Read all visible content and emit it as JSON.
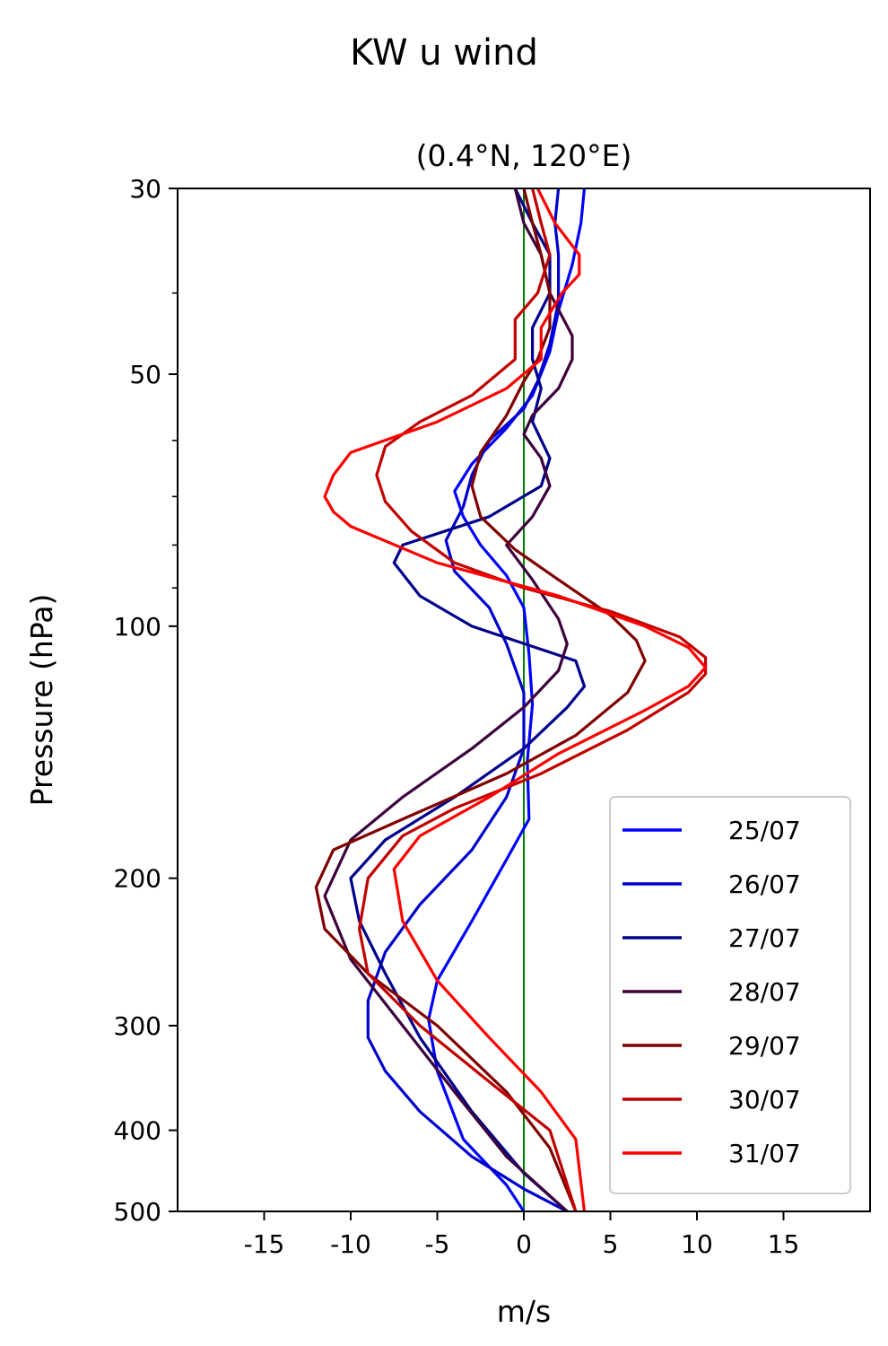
{
  "chart_data": {
    "type": "line",
    "suptitle": "KW u wind",
    "title": "(0.4°N, 120°E)",
    "xlabel": "m/s",
    "ylabel": "Pressure (hPa)",
    "xlim": [
      -20,
      20
    ],
    "ylim": [
      500,
      30
    ],
    "yscale": "log",
    "xticks": [
      -15,
      -10,
      -5,
      0,
      5,
      10,
      15
    ],
    "xtick_labels": [
      "-15",
      "-10",
      "-5",
      "0",
      "5",
      "10",
      "15"
    ],
    "yticks": [
      30,
      50,
      100,
      200,
      300,
      400,
      500
    ],
    "ytick_labels": [
      "30",
      "50",
      "100",
      "200",
      "300",
      "400",
      "500"
    ],
    "yminor_ticks": [
      40,
      60,
      70,
      80,
      90
    ],
    "reference_line": {
      "x": 0,
      "color": "#008000"
    },
    "legend_position": "lower-right",
    "grid": false,
    "series": [
      {
        "name": "25/07",
        "color": "#0000ff",
        "points": [
          [
            3.5,
            30
          ],
          [
            3.3,
            33
          ],
          [
            2.8,
            37
          ],
          [
            2.0,
            42
          ],
          [
            1.5,
            47
          ],
          [
            0.5,
            53
          ],
          [
            -1,
            58
          ],
          [
            -3,
            64
          ],
          [
            -4,
            69
          ],
          [
            -3.5,
            74
          ],
          [
            -2.5,
            80
          ],
          [
            -1,
            87
          ],
          [
            0,
            95
          ],
          [
            0.3,
            108
          ],
          [
            0.5,
            124
          ],
          [
            0.2,
            145
          ],
          [
            0.3,
            170
          ],
          [
            -1,
            190
          ],
          [
            -3,
            225
          ],
          [
            -5,
            265
          ],
          [
            -5.5,
            295
          ],
          [
            -5,
            340
          ],
          [
            -3.5,
            410
          ],
          [
            -1,
            465
          ],
          [
            0,
            500
          ]
        ]
      },
      {
        "name": "26/07",
        "color": "#0000cd",
        "points": [
          [
            2.0,
            30
          ],
          [
            1.8,
            33
          ],
          [
            2.0,
            36
          ],
          [
            2.0,
            41
          ],
          [
            1.5,
            46
          ],
          [
            0.8,
            51
          ],
          [
            0,
            55
          ],
          [
            -2,
            60
          ],
          [
            -3,
            66
          ],
          [
            -3.5,
            72
          ],
          [
            -4.5,
            79
          ],
          [
            -4,
            86
          ],
          [
            -2,
            95
          ],
          [
            -1,
            105
          ],
          [
            0,
            120
          ],
          [
            0,
            140
          ],
          [
            -1,
            160
          ],
          [
            -3,
            185
          ],
          [
            -6,
            215
          ],
          [
            -8,
            245
          ],
          [
            -9,
            280
          ],
          [
            -9,
            310
          ],
          [
            -8,
            340
          ],
          [
            -6,
            380
          ],
          [
            -3,
            430
          ],
          [
            0,
            470
          ],
          [
            2.5,
            500
          ]
        ]
      },
      {
        "name": "27/07",
        "color": "#00008b",
        "points": [
          [
            -0.5,
            30
          ],
          [
            0.5,
            33
          ],
          [
            1.5,
            36
          ],
          [
            1.5,
            40
          ],
          [
            0.5,
            44
          ],
          [
            0.5,
            48
          ],
          [
            1.0,
            52
          ],
          [
            0.5,
            57
          ],
          [
            1.5,
            63
          ],
          [
            1.0,
            68
          ],
          [
            -2,
            74
          ],
          [
            -7,
            80
          ],
          [
            -7.5,
            84
          ],
          [
            -6,
            92
          ],
          [
            -3,
            100
          ],
          [
            3,
            110
          ],
          [
            3.5,
            118
          ],
          [
            2.5,
            125
          ],
          [
            0,
            140
          ],
          [
            -4,
            160
          ],
          [
            -8,
            180
          ],
          [
            -10,
            200
          ],
          [
            -9.5,
            225
          ],
          [
            -8,
            260
          ],
          [
            -6,
            310
          ],
          [
            -3,
            380
          ],
          [
            0,
            450
          ],
          [
            2.5,
            500
          ]
        ]
      },
      {
        "name": "28/07",
        "color": "#3c003c",
        "points": [
          [
            -0.5,
            30
          ],
          [
            0,
            33
          ],
          [
            1.0,
            36
          ],
          [
            1.5,
            40
          ],
          [
            2.8,
            45
          ],
          [
            2.8,
            48
          ],
          [
            2.0,
            52
          ],
          [
            0.5,
            56
          ],
          [
            0,
            59
          ],
          [
            1.0,
            63
          ],
          [
            1.5,
            68
          ],
          [
            0.5,
            74
          ],
          [
            -1,
            80
          ],
          [
            0.5,
            88
          ],
          [
            2,
            98
          ],
          [
            2.5,
            105
          ],
          [
            2.0,
            113
          ],
          [
            0,
            125
          ],
          [
            -3,
            140
          ],
          [
            -7,
            160
          ],
          [
            -10,
            180
          ],
          [
            -11.5,
            210
          ],
          [
            -10,
            250
          ],
          [
            -7,
            300
          ],
          [
            -4,
            360
          ],
          [
            -1,
            430
          ],
          [
            2.5,
            500
          ]
        ]
      },
      {
        "name": "29/07",
        "color": "#800000",
        "points": [
          [
            0,
            30
          ],
          [
            0.5,
            33
          ],
          [
            1.0,
            36
          ],
          [
            1.5,
            40
          ],
          [
            1.5,
            44
          ],
          [
            0.8,
            48
          ],
          [
            0,
            51
          ],
          [
            -1,
            56
          ],
          [
            -2.5,
            62
          ],
          [
            -3,
            68
          ],
          [
            -2.5,
            74
          ],
          [
            -0.5,
            81
          ],
          [
            2,
            88
          ],
          [
            5,
            97
          ],
          [
            6.5,
            104
          ],
          [
            7,
            110
          ],
          [
            6,
            120
          ],
          [
            3,
            135
          ],
          [
            -1,
            150
          ],
          [
            -7,
            170
          ],
          [
            -11,
            185
          ],
          [
            -12,
            205
          ],
          [
            -11.5,
            230
          ],
          [
            -9,
            260
          ],
          [
            -5,
            300
          ],
          [
            -1,
            360
          ],
          [
            1.5,
            420
          ],
          [
            3,
            500
          ]
        ]
      },
      {
        "name": "30/07",
        "color": "#c00000",
        "points": [
          [
            0.5,
            30
          ],
          [
            1.0,
            33
          ],
          [
            1.5,
            36
          ],
          [
            0.8,
            40
          ],
          [
            -0.5,
            43
          ],
          [
            -0.5,
            45
          ],
          [
            -0.5,
            48
          ],
          [
            -3,
            53
          ],
          [
            -6,
            57
          ],
          [
            -8,
            61
          ],
          [
            -8.5,
            66
          ],
          [
            -8,
            71
          ],
          [
            -6.5,
            77
          ],
          [
            -4,
            84
          ],
          [
            0,
            90
          ],
          [
            5,
            96
          ],
          [
            9,
            103
          ],
          [
            10.5,
            109
          ],
          [
            10.5,
            114
          ],
          [
            9.5,
            120
          ],
          [
            6,
            133
          ],
          [
            1,
            150
          ],
          [
            -4,
            165
          ],
          [
            -7,
            178
          ],
          [
            -9,
            200
          ],
          [
            -9.5,
            230
          ],
          [
            -9,
            260
          ],
          [
            -6,
            300
          ],
          [
            -2,
            350
          ],
          [
            1.5,
            400
          ],
          [
            3,
            500
          ]
        ]
      },
      {
        "name": "31/07",
        "color": "#ff0000",
        "points": [
          [
            0.8,
            30
          ],
          [
            1.8,
            33
          ],
          [
            3.2,
            36
          ],
          [
            3.2,
            38
          ],
          [
            2.2,
            40
          ],
          [
            1,
            44
          ],
          [
            1,
            48
          ],
          [
            -1,
            52
          ],
          [
            -5,
            57
          ],
          [
            -10,
            62
          ],
          [
            -11,
            66
          ],
          [
            -11.5,
            70
          ],
          [
            -11,
            73
          ],
          [
            -10,
            76
          ],
          [
            -5,
            84
          ],
          [
            2,
            92
          ],
          [
            7,
            100
          ],
          [
            9.5,
            106
          ],
          [
            10.5,
            112
          ],
          [
            9.5,
            118
          ],
          [
            7,
            126
          ],
          [
            2,
            142
          ],
          [
            -2,
            160
          ],
          [
            -6,
            178
          ],
          [
            -7.5,
            195
          ],
          [
            -7,
            225
          ],
          [
            -5,
            265
          ],
          [
            -2,
            310
          ],
          [
            1,
            360
          ],
          [
            3,
            410
          ],
          [
            3.5,
            500
          ]
        ]
      }
    ]
  }
}
